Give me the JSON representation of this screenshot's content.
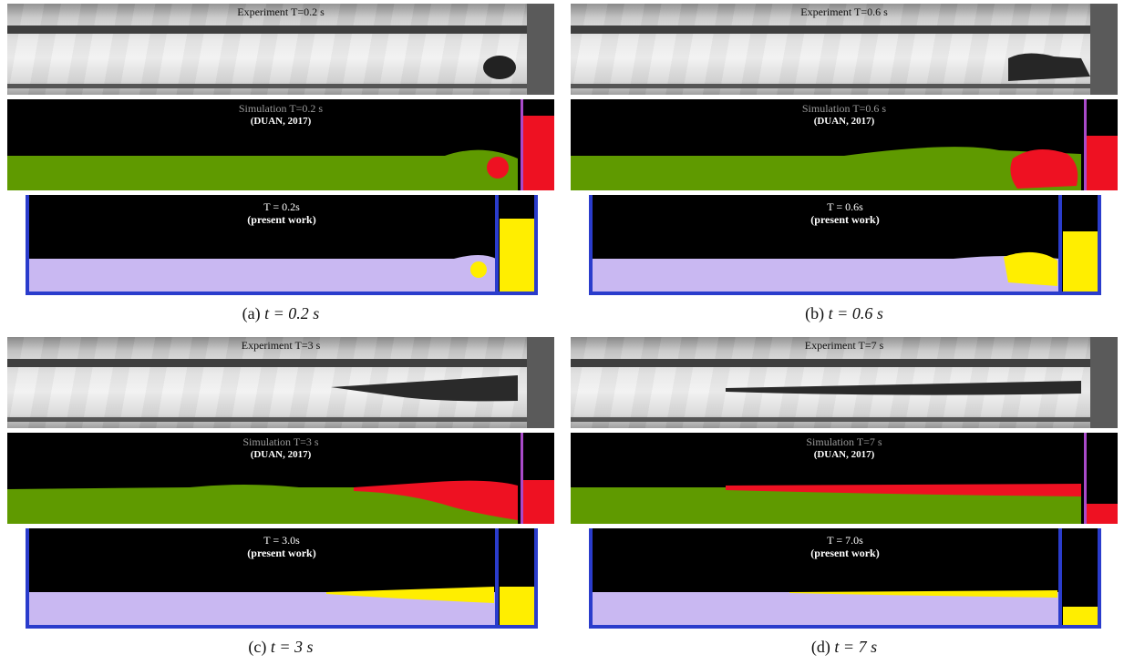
{
  "panels": [
    {
      "experiment_label": "Experiment T=0.2 s",
      "simulation_label": "Simulation T=0.2 s",
      "simulation_source": "(DUAN, 2017)",
      "present_label": "T = 0.2s",
      "present_source": "(present work)",
      "caption_prefix": "(a)",
      "caption_expr": "t = 0.2 s"
    },
    {
      "experiment_label": "Experiment T=0.6 s",
      "simulation_label": "Simulation T=0.6 s",
      "simulation_source": "(DUAN, 2017)",
      "present_label": "T = 0.6s",
      "present_source": "(present work)",
      "caption_prefix": "(b)",
      "caption_expr": "t = 0.6 s"
    },
    {
      "experiment_label": "Experiment T=3 s",
      "simulation_label": "Simulation T=3 s",
      "simulation_source": "(DUAN, 2017)",
      "present_label": "T = 3.0s",
      "present_source": "(present work)",
      "caption_prefix": "(c)",
      "caption_expr": "t = 3 s"
    },
    {
      "experiment_label": "Experiment T=7 s",
      "simulation_label": "Simulation T=7 s",
      "simulation_source": "(DUAN, 2017)",
      "present_label": "T = 7.0s",
      "present_source": "(present work)",
      "caption_prefix": "(d)",
      "caption_expr": "t = 7 s"
    }
  ]
}
